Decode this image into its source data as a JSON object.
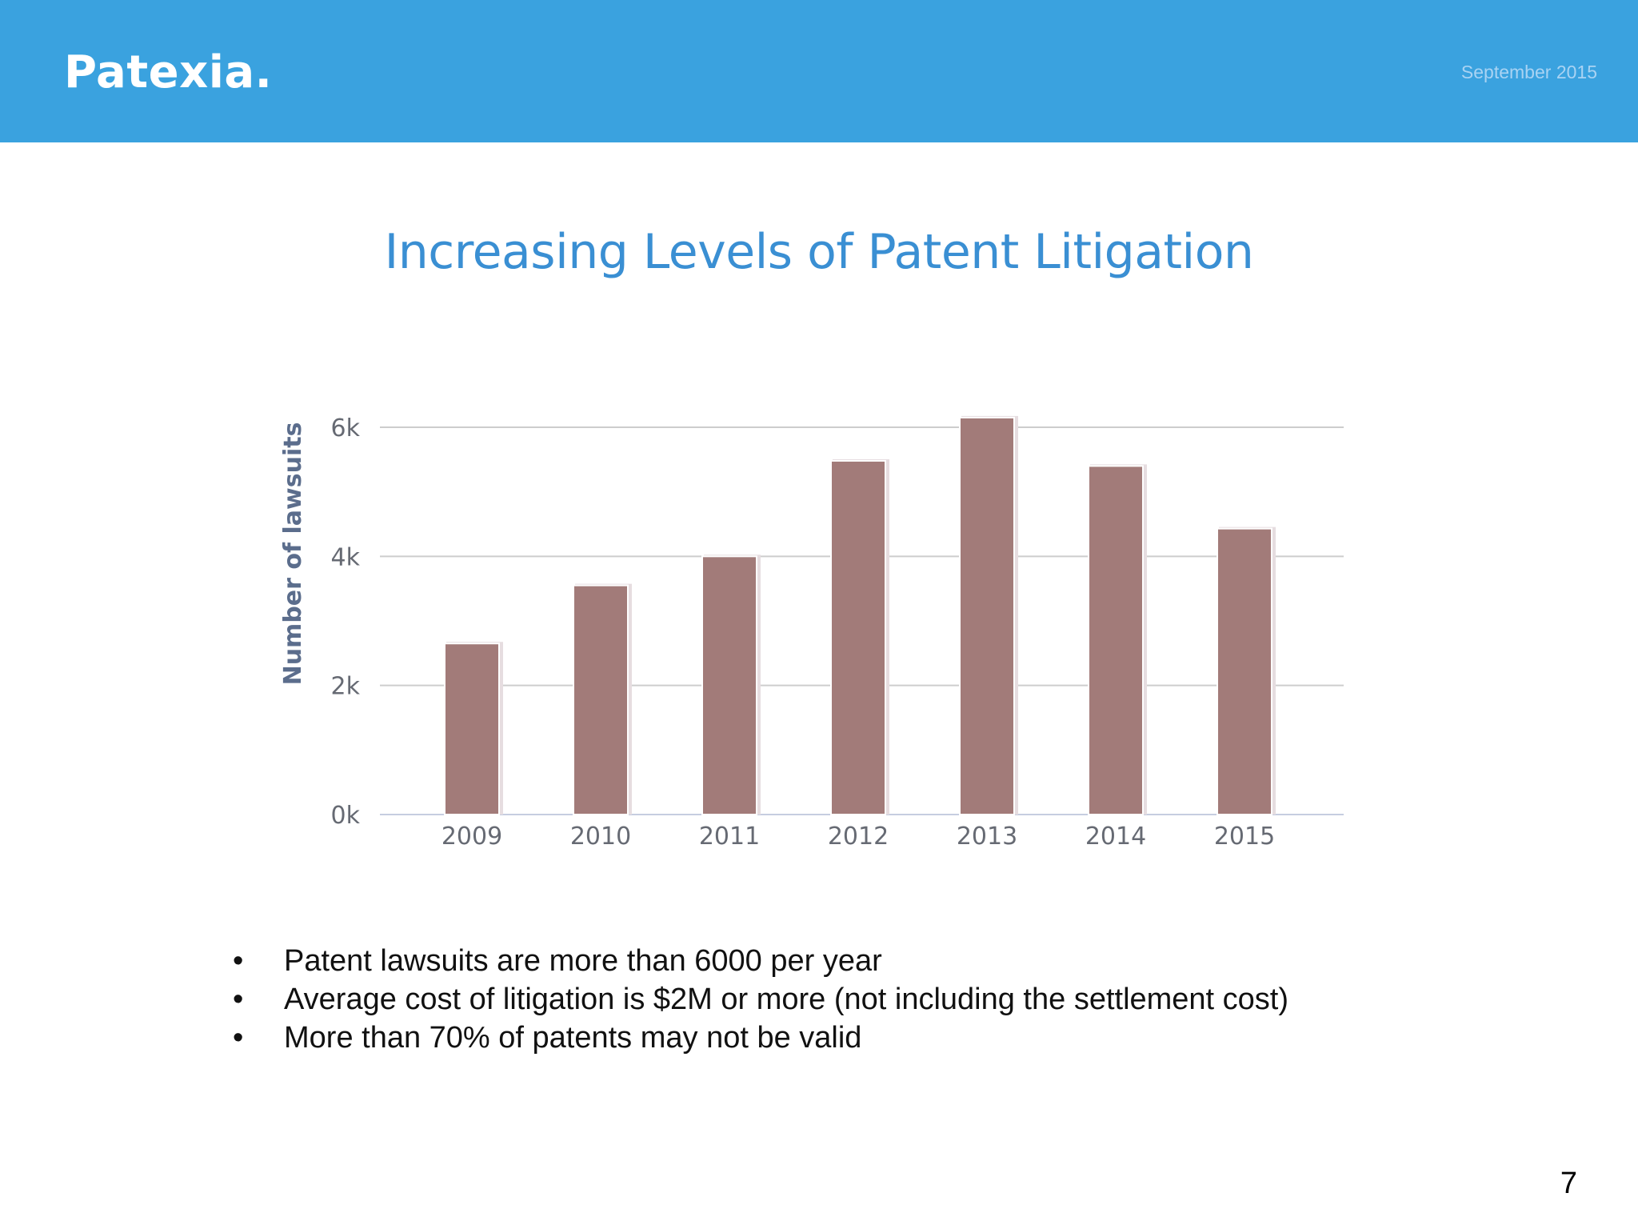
{
  "header": {
    "logo": "Patexia.",
    "date": "September 2015"
  },
  "slide": {
    "title": "Increasing Levels of Patent Litigation",
    "bullets": [
      "Patent lawsuits are more than 6000 per year",
      "Average cost of litigation is $2M or more (not including the settlement cost)",
      "More than 70% of patents may not be valid"
    ],
    "bullet_glyph": "•",
    "page_number": "7"
  },
  "colors": {
    "header_bg": "#3aa2df",
    "title": "#3a8fd3",
    "bar": "#a27b79",
    "axis_text": "#666a73",
    "ylabel": "#5b6d8c",
    "gridline": "#cdcdcd",
    "baseline": "#c6cde0"
  },
  "chart_data": {
    "type": "bar",
    "categories": [
      "2009",
      "2010",
      "2011",
      "2012",
      "2013",
      "2014",
      "2015"
    ],
    "values": [
      2650,
      3550,
      4000,
      5480,
      6150,
      5400,
      4430
    ],
    "title": "",
    "xlabel": "",
    "ylabel": "Number of lawsuits",
    "ylim": [
      0,
      6000
    ],
    "yticks": [
      0,
      2000,
      4000,
      6000
    ],
    "ytick_labels": [
      "0k",
      "2k",
      "4k",
      "6k"
    ],
    "grid": true,
    "legend": false
  }
}
